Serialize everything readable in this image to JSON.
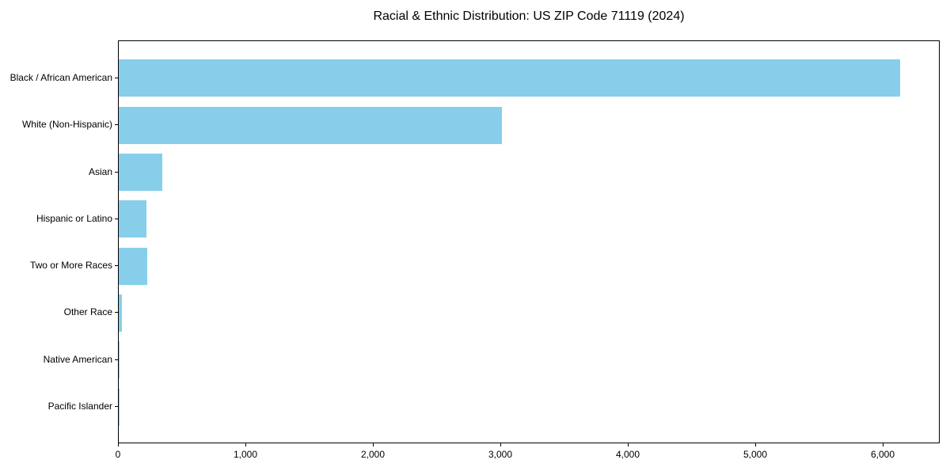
{
  "chart_data": {
    "type": "bar",
    "orientation": "horizontal",
    "title": "Racial & Ethnic Distribution: US ZIP Code 71119 (2024)",
    "xlabel": "",
    "ylabel": "",
    "categories": [
      "Black / African American",
      "White (Non-Hispanic)",
      "Asian",
      "Hispanic or Latino",
      "Two or More Races",
      "Other Race",
      "Native American",
      "Pacific Islander"
    ],
    "values": [
      6142,
      3014,
      342,
      218,
      224,
      24,
      3,
      1
    ],
    "xlim": [
      0,
      6450
    ],
    "x_ticks": [
      0,
      1000,
      2000,
      3000,
      4000,
      5000,
      6000
    ],
    "x_tick_labels": [
      "0",
      "1,000",
      "2,000",
      "3,000",
      "4,000",
      "5,000",
      "6,000"
    ],
    "grid": false,
    "legend": null,
    "bar_color": "#87CEEB",
    "axis_color": "#000000",
    "text_color": "#000000",
    "background_color": "#ffffff"
  }
}
